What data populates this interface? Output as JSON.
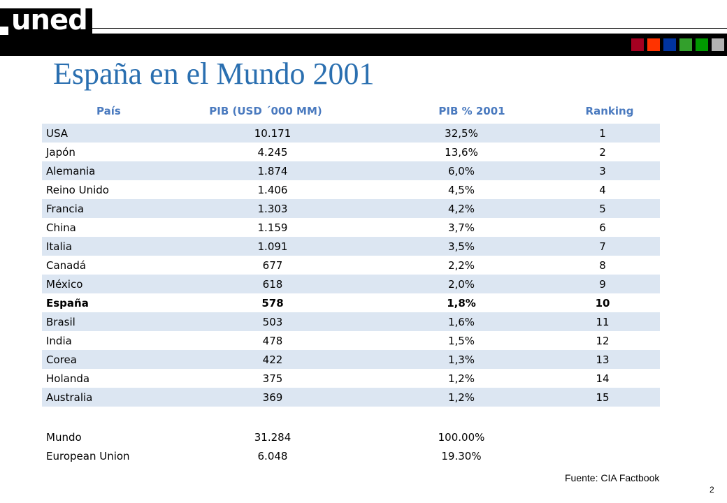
{
  "logo": {
    "text": "uned"
  },
  "brand_squares": [
    "#a50021",
    "#ff3300",
    "#0033a0",
    "#33a02c",
    "#009900",
    "#b3b3b3"
  ],
  "title": "España en el Mundo 2001",
  "table": {
    "headers": [
      "País",
      "PIB (USD ´000 MM)",
      "PIB % 2001",
      "Ranking"
    ],
    "rows": [
      {
        "pais": "USA",
        "pib": "10.171",
        "pct": "32,5%",
        "rank": "1"
      },
      {
        "pais": "Japón",
        "pib": "4.245",
        "pct": "13,6%",
        "rank": "2"
      },
      {
        "pais": "Alemania",
        "pib": "1.874",
        "pct": "6,0%",
        "rank": "3"
      },
      {
        "pais": "Reino Unido",
        "pib": "1.406",
        "pct": "4,5%",
        "rank": "4"
      },
      {
        "pais": "Francia",
        "pib": "1.303",
        "pct": "4,2%",
        "rank": "5"
      },
      {
        "pais": "China",
        "pib": "1.159",
        "pct": "3,7%",
        "rank": "6"
      },
      {
        "pais": "Italia",
        "pib": "1.091",
        "pct": "3,5%",
        "rank": "7"
      },
      {
        "pais": "Canadá",
        "pib": "677",
        "pct": "2,2%",
        "rank": "8"
      },
      {
        "pais": "México",
        "pib": "618",
        "pct": "2,0%",
        "rank": "9"
      },
      {
        "pais": "España",
        "pib": "578",
        "pct": "1,8%",
        "rank": "10"
      },
      {
        "pais": "Brasil",
        "pib": "503",
        "pct": "1,6%",
        "rank": "11"
      },
      {
        "pais": "India",
        "pib": "478",
        "pct": "1,5%",
        "rank": "12"
      },
      {
        "pais": "Corea",
        "pib": "422",
        "pct": "1,3%",
        "rank": "13"
      },
      {
        "pais": "Holanda",
        "pib": "375",
        "pct": "1,2%",
        "rank": "14"
      },
      {
        "pais": "Australia",
        "pib": "369",
        "pct": "1,2%",
        "rank": "15"
      }
    ],
    "totals": [
      {
        "pais": "Mundo",
        "pib": "31.284",
        "pct": "100.00%"
      },
      {
        "pais": "European Union",
        "pib": "6.048",
        "pct": "19.30%"
      }
    ]
  },
  "source": "Fuente: CIA Factbook",
  "page_number": "2"
}
